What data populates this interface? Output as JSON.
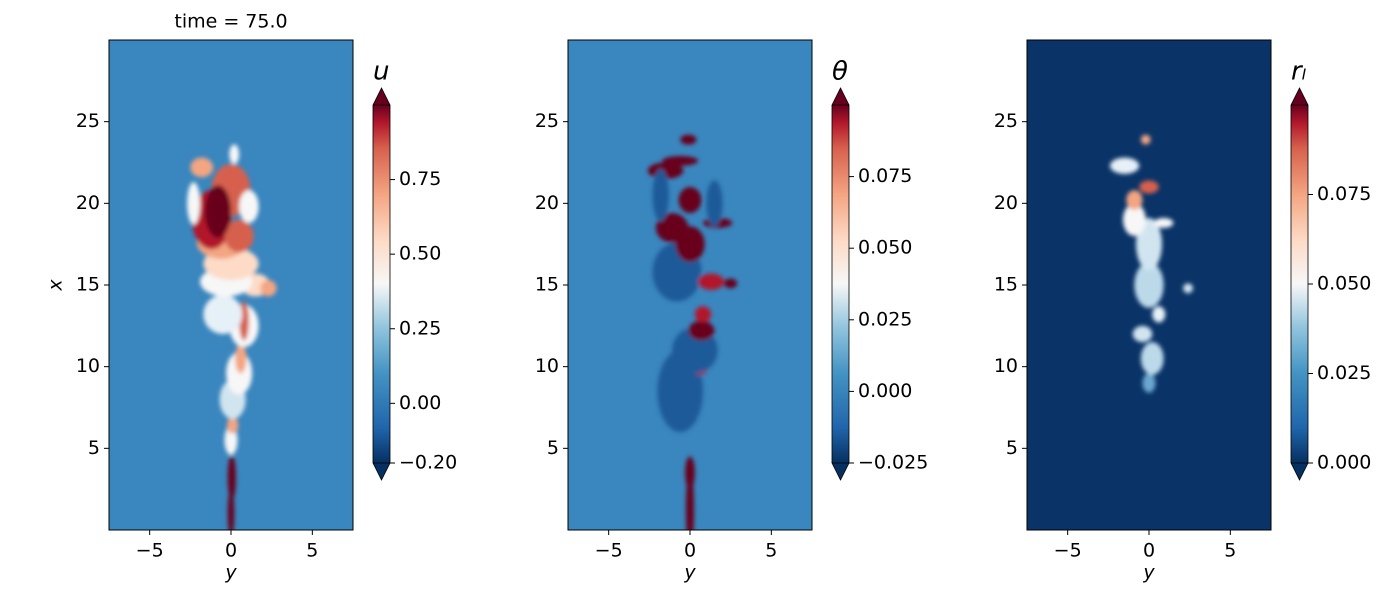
{
  "chart_data": [
    {
      "type": "heatmap",
      "title": "time = 75.0",
      "xlabel": "y",
      "ylabel": "x",
      "colorbar_label": "u",
      "colormap": "RdBu_r",
      "xlim": [
        -7.5,
        7.5
      ],
      "ylim": [
        0,
        30
      ],
      "xticks": [
        {
          "value": -5,
          "label": "−5"
        },
        0,
        5
      ],
      "yticks": [
        5,
        10,
        15,
        20,
        25
      ],
      "clim": [
        -0.2,
        1.0
      ],
      "cticks": [
        {
          "value": -0.2,
          "label": "−0.20"
        },
        {
          "value": 0,
          "label": "0.00"
        },
        {
          "value": 0.25,
          "label": "0.25"
        },
        {
          "value": 0.5,
          "label": "0.50"
        },
        {
          "value": 0.75,
          "label": "0.75"
        }
      ]
    },
    {
      "type": "heatmap",
      "xlabel": "y",
      "colorbar_label": "θ",
      "colormap": "RdBu_r",
      "xlim": [
        -7.5,
        7.5
      ],
      "ylim": [
        0,
        30
      ],
      "xticks": [
        {
          "value": -5,
          "label": "−5"
        },
        0,
        5
      ],
      "yticks": [
        5,
        10,
        15,
        20,
        25
      ],
      "clim": [
        -0.025,
        0.1
      ],
      "cticks": [
        {
          "value": -0.025,
          "label": "−0.025"
        },
        {
          "value": 0,
          "label": "0.000"
        },
        {
          "value": 0.025,
          "label": "0.025"
        },
        {
          "value": 0.05,
          "label": "0.050"
        },
        {
          "value": 0.075,
          "label": "0.075"
        }
      ]
    },
    {
      "type": "heatmap",
      "xlabel": "y",
      "colorbar_label": "rₗ",
      "colormap": "RdBu_r",
      "xlim": [
        -7.5,
        7.5
      ],
      "ylim": [
        0,
        30
      ],
      "xticks": [
        {
          "value": -5,
          "label": "−5"
        },
        0,
        5
      ],
      "yticks": [
        5,
        10,
        15,
        20,
        25
      ],
      "clim": [
        0,
        0.1
      ],
      "cticks": [
        {
          "value": 0,
          "label": "0.000"
        },
        {
          "value": 0.025,
          "label": "0.025"
        },
        {
          "value": 0.05,
          "label": "0.050"
        },
        {
          "value": 0.075,
          "label": "0.075"
        }
      ]
    }
  ]
}
